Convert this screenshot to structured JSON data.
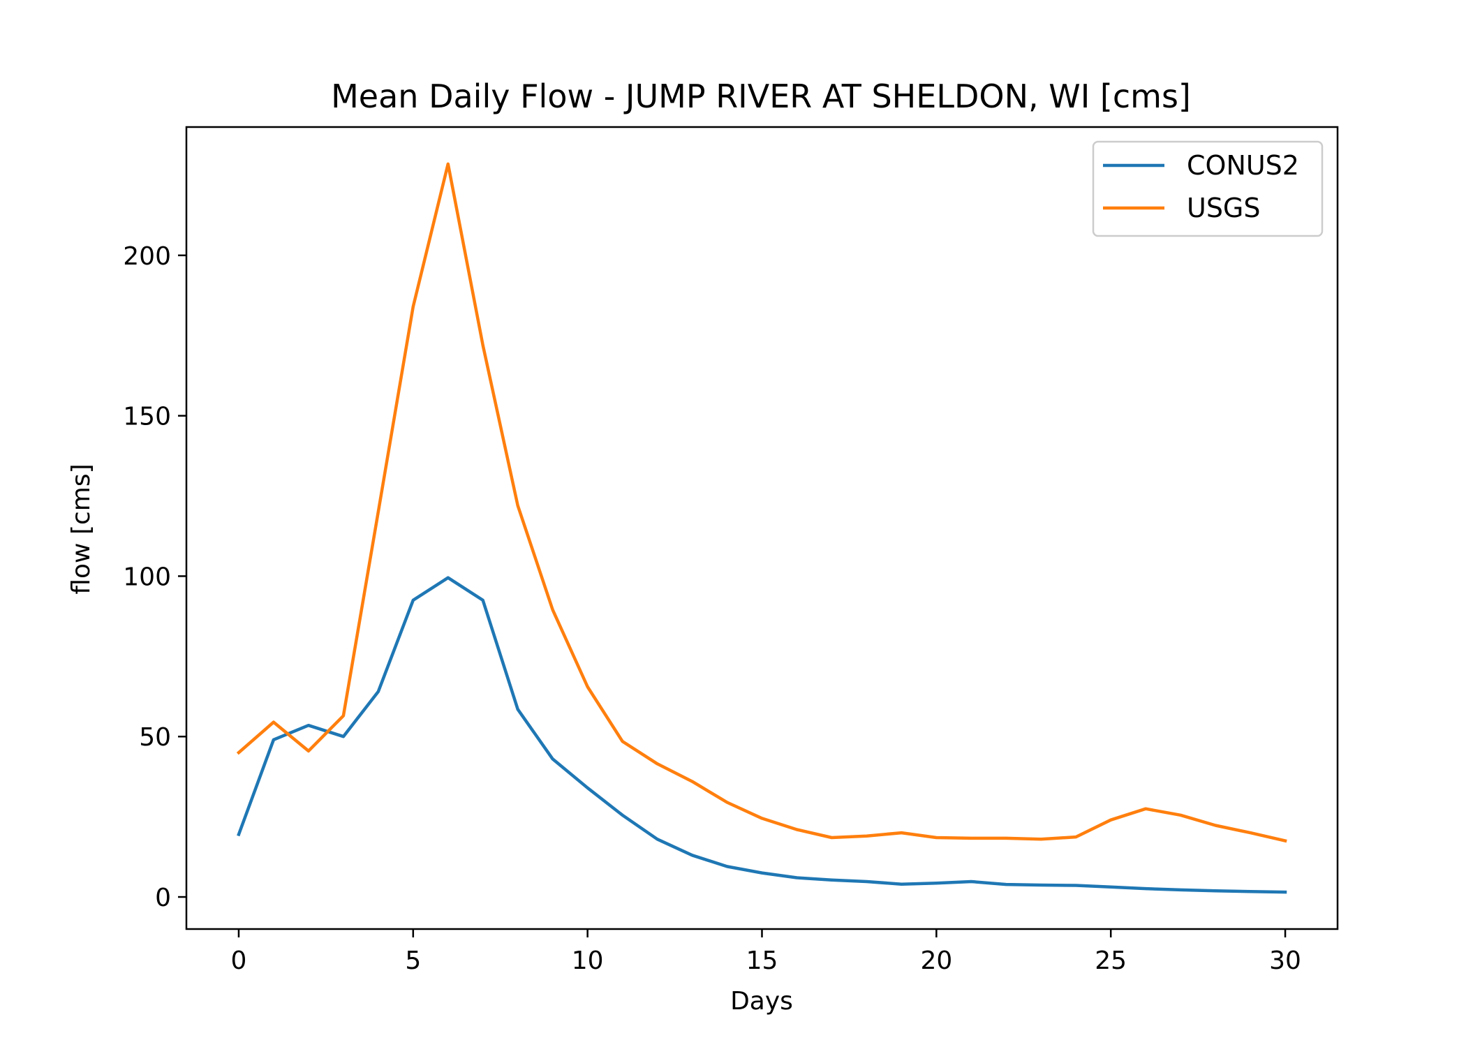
{
  "chart_data": {
    "type": "line",
    "title": "Mean Daily Flow - JUMP RIVER AT SHELDON, WI [cms]",
    "xlabel": "Days",
    "ylabel": "flow [cms]",
    "xlim": [
      -1.5,
      31.5
    ],
    "ylim": [
      -10,
      240
    ],
    "xticks": [
      0,
      5,
      10,
      15,
      20,
      25,
      30
    ],
    "yticks": [
      0,
      50,
      100,
      150,
      200
    ],
    "xtick_labels": [
      "0",
      "5",
      "10",
      "15",
      "20",
      "25",
      "30"
    ],
    "ytick_labels": [
      "0",
      "50",
      "100",
      "150",
      "200"
    ],
    "grid": false,
    "legend_position": "top-right",
    "x": [
      0,
      1,
      2,
      3,
      4,
      5,
      6,
      7,
      8,
      9,
      10,
      11,
      12,
      13,
      14,
      15,
      16,
      17,
      18,
      19,
      20,
      21,
      22,
      23,
      24,
      25,
      26,
      27,
      28,
      29,
      30
    ],
    "series": [
      {
        "name": "CONUS2",
        "color": "#1f77b4",
        "values": [
          19.5,
          49,
          53.5,
          50,
          64,
          92.5,
          99.5,
          92.5,
          58.5,
          43,
          34,
          25.5,
          18,
          13,
          9.5,
          7.5,
          6,
          5.3,
          4.8,
          4,
          4.3,
          4.8,
          3.9,
          3.7,
          3.6,
          3.1,
          2.6,
          2.2,
          1.9,
          1.7,
          1.5
        ]
      },
      {
        "name": "USGS",
        "color": "#ff7f0e",
        "values": [
          45,
          54.5,
          45.5,
          56.5,
          120,
          184,
          228.5,
          172,
          122,
          89.5,
          65.5,
          48.5,
          41.5,
          36,
          29.5,
          24.5,
          21,
          18.5,
          19,
          20,
          18.5,
          18.3,
          18.3,
          18,
          18.7,
          24,
          27.5,
          25.5,
          22.3,
          20,
          17.5
        ]
      }
    ]
  }
}
